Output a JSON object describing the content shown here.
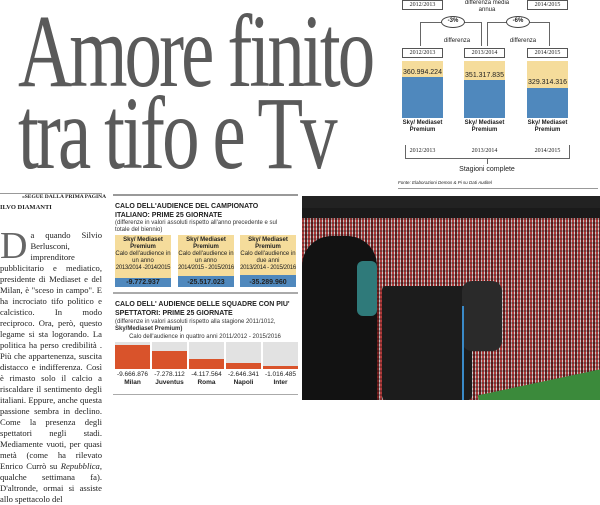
{
  "headline": {
    "line1": "Amore finito",
    "line2": "tra tifo e Tv"
  },
  "top_chart": {
    "top_boxes": [
      "2012/2013",
      "2014/2015"
    ],
    "top_label": "differenza media annua",
    "diffs": [
      {
        "value": "-3%",
        "label": "differenza"
      },
      {
        "value": "-6%",
        "label": "differenza"
      }
    ],
    "seasons": [
      {
        "box": "2012/2013",
        "value": "360.994.224",
        "label": "Sky/ Mediaset Premium",
        "bottom": "2012/2013",
        "fill": 0.72
      },
      {
        "box": "2013/2014",
        "value": "351.317.835",
        "label": "Sky/ Mediaset Premium",
        "bottom": "2013/2014",
        "fill": 0.67
      },
      {
        "box": "2014/2015",
        "value": "329.314.316",
        "label": "Sky/ Mediaset Premium",
        "bottom": "2014/2015",
        "fill": 0.53
      }
    ],
    "bracket_label": "Stagioni complete",
    "source": "Fonte: Elaborazioni Demos & Pi su Dati Auditel",
    "colors": {
      "yellow": "#f5dc9b",
      "blue": "#4f88bd"
    }
  },
  "article": {
    "kicker": "«SEGUE DALLA PRIMA PAGINA",
    "author": "ILVO DIAMANTI",
    "drop_cap": "D",
    "body": "a quando Silvio Berlusconi, imprenditore pubblicitario e mediatico, presidente di Mediaset e del Milan, è \"sceso in campo\". E ha incrociato tifo politico e calcistico. In modo reciproco. Ora, però, questo legame si sta logorando. La politica ha perso credibilità . Più che appartenenza, suscita distacco e indifferenza. Così è rimasto solo il calcio a riscaldare il sentimento degli italiani. Eppure, anche questa passione sembra in declino. Come la presenza degli spettatori negli stadi. Mediamente vuoti, per quasi metà (come ha rilevato Enrico Currò su ",
    "italic": "Repubblica",
    "body_end": ", qualche settimana fa). D'altronde, ormai si assiste allo spettacolo del"
  },
  "audience_box": {
    "title": "CALO DELL'AUDIENCE DEL CAMPIONATO ITALIANO: PRIME 25 GIORNATE",
    "note": "(differenze in valori assoluti rispetto all'anno precedente e sul totale del biennio)",
    "items": [
      {
        "name": "Sky/ Mediaset Premium",
        "desc": "Calo dell'audience in un anno",
        "period": "2013/2014 -2014/2015",
        "value": "-9.772.937",
        "fill": 0.2
      },
      {
        "name": "Sky/ Mediaset Premium",
        "desc": "Calo dell'audience in un anno",
        "period": "2014/2015 - 2015/2016",
        "value": "-25.517.023",
        "fill": 0.5
      },
      {
        "name": "Sky/ Mediaset Premium",
        "desc": "Calo dell'audience in due anni",
        "period": "2013/2014 - 2015/2016",
        "value": "-35.289.960",
        "fill": 0.7
      }
    ]
  },
  "teams_box": {
    "title": "CALO DELL' AUDIENCE DELLE SQUADRE CON PIU' SPETTATORI: PRIME 25 GIORNATE",
    "note": "(differenze in valori assoluti rispetto alla stagione 2011/1012,",
    "note_bold": "Sky/Mediaset Premium)",
    "caption": "Calo dell'audience in quattro anni 2011/2012 - 2015/2016",
    "teams": [
      {
        "name": "Milan",
        "value": "-9.666.876",
        "fill": 0.88
      },
      {
        "name": "Juventus",
        "value": "-7.278.112",
        "fill": 0.66
      },
      {
        "name": "Roma",
        "value": "-4.117.564",
        "fill": 0.37
      },
      {
        "name": "Napoli",
        "value": "-2.646.341",
        "fill": 0.24
      },
      {
        "name": "Inter",
        "value": "-1.016.485",
        "fill": 0.1
      }
    ],
    "colors": {
      "bar": "#d9532b",
      "track": "#e2e2e2"
    }
  },
  "photo": {
    "subject": "stadium-crowd-tv-camera"
  }
}
